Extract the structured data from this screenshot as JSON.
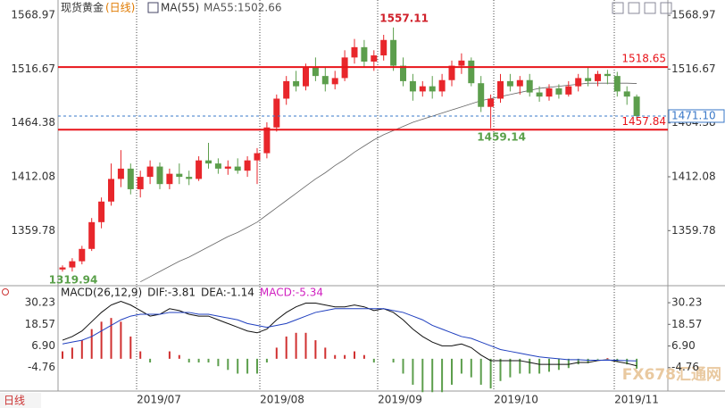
{
  "chart_data": [
    {
      "type": "candlestick",
      "title": "现货黄金",
      "period": "(日线)",
      "indicator": "MA(55)",
      "indicator_value": "MA55:1502.66",
      "open": [
        1322,
        1324,
        1330,
        1342,
        1368,
        1388,
        1410,
        1420,
        1400,
        1412,
        1422,
        1405,
        1415,
        1412,
        1410,
        1428,
        1425,
        1420,
        1422,
        1418,
        1428,
        1435,
        1460,
        1488,
        1505,
        1500,
        1518,
        1510,
        1502,
        1508,
        1528,
        1538,
        1524,
        1530,
        1545,
        1520,
        1505,
        1495,
        1500,
        1495,
        1506,
        1520,
        1525,
        1503,
        1480,
        1488,
        1505,
        1500,
        1506,
        1494,
        1490,
        1498,
        1492,
        1500,
        1508,
        1505,
        1512,
        1510,
        1495,
        1490
      ],
      "high": [
        1326,
        1333,
        1345,
        1372,
        1392,
        1425,
        1438,
        1425,
        1418,
        1428,
        1426,
        1420,
        1425,
        1418,
        1432,
        1445,
        1430,
        1428,
        1430,
        1432,
        1440,
        1465,
        1492,
        1510,
        1515,
        1522,
        1528,
        1518,
        1515,
        1535,
        1546,
        1545,
        1535,
        1550,
        1557.11,
        1528,
        1512,
        1505,
        1510,
        1512,
        1525,
        1532,
        1528,
        1510,
        1492,
        1512,
        1512,
        1510,
        1512,
        1500,
        1502,
        1502,
        1505,
        1512,
        1518,
        1515,
        1516,
        1514,
        1500,
        1492
      ],
      "low": [
        1319.94,
        1320,
        1327,
        1340,
        1362,
        1384,
        1402,
        1395,
        1392,
        1405,
        1400,
        1400,
        1405,
        1404,
        1408,
        1420,
        1415,
        1414,
        1415,
        1412,
        1405,
        1430,
        1456,
        1482,
        1495,
        1496,
        1505,
        1495,
        1497,
        1505,
        1522,
        1518,
        1515,
        1525,
        1515,
        1500,
        1486,
        1490,
        1488,
        1490,
        1500,
        1512,
        1500,
        1475,
        1459.14,
        1484,
        1495,
        1492,
        1490,
        1485,
        1486,
        1488,
        1490,
        1495,
        1500,
        1500,
        1502,
        1490,
        1482,
        1469
      ],
      "close": [
        1324,
        1330,
        1342,
        1368,
        1388,
        1410,
        1420,
        1400,
        1412,
        1422,
        1405,
        1415,
        1412,
        1410,
        1428,
        1425,
        1420,
        1422,
        1418,
        1428,
        1435,
        1460,
        1488,
        1505,
        1500,
        1518,
        1510,
        1502,
        1508,
        1528,
        1538,
        1524,
        1530,
        1545,
        1520,
        1505,
        1495,
        1500,
        1495,
        1506,
        1520,
        1525,
        1503,
        1480,
        1488,
        1505,
        1500,
        1506,
        1494,
        1490,
        1498,
        1492,
        1500,
        1508,
        1505,
        1512,
        1510,
        1495,
        1490,
        1471.1
      ],
      "up_color": "#e8262b",
      "down_color": "#5c9e4c",
      "ma_values": [
        null,
        null,
        null,
        null,
        null,
        null,
        null,
        null,
        1310,
        1315,
        1320,
        1325,
        1330,
        1334,
        1339,
        1344,
        1349,
        1354,
        1358,
        1363,
        1368,
        1375,
        1382,
        1389,
        1396,
        1403,
        1410,
        1416,
        1423,
        1429,
        1436,
        1442,
        1448,
        1453,
        1457,
        1461,
        1465,
        1468,
        1471,
        1474,
        1477,
        1480,
        1483,
        1486,
        1488,
        1490,
        1492,
        1494,
        1496,
        1498,
        1499,
        1500,
        1501,
        1502,
        1503,
        1503,
        1503,
        1503,
        1503,
        1502.66
      ],
      "ma_color": "#666666",
      "levels": [
        {
          "value": 1518.65,
          "color": "#e8141a",
          "style": "solid"
        },
        {
          "value": 1457.84,
          "color": "#e8141a",
          "style": "solid"
        },
        {
          "value": 1471.1,
          "label": "1471.10",
          "color": "#3a78c8",
          "style": "dashed"
        }
      ],
      "annotations": [
        {
          "value": 1557.11,
          "color": "#d0202a"
        },
        {
          "value": 1459.14,
          "color": "#5aa04a"
        },
        {
          "value": 1319.94,
          "color": "#5aa04a"
        }
      ],
      "ylim": [
        1308,
        1579.5
      ],
      "yticks": [
        1568.97,
        1516.67,
        1464.38,
        1412.08,
        1359.78
      ],
      "months": [
        "2019/07",
        "2019/08",
        "2019/09",
        "2019/10",
        "2019/11"
      ],
      "footer": "日线",
      "watermark": "FX678汇通网"
    },
    {
      "type": "macd",
      "header": [
        "MACD(26,12,9)",
        "DIF:-3.81",
        "DEA:-1.14",
        "MACD:-5.34"
      ],
      "header_colors": [
        "#222222",
        "#222222",
        "#222222",
        "#d020c0"
      ],
      "dif": [
        10,
        12,
        15,
        20,
        25,
        29,
        31,
        29,
        26,
        23,
        24,
        27,
        26,
        24,
        23,
        23,
        21,
        19,
        17,
        15,
        14,
        16,
        21,
        25,
        28,
        30,
        30,
        29,
        28,
        28,
        29,
        28,
        26,
        27,
        25,
        21,
        16,
        12,
        9,
        7,
        7,
        8,
        6,
        2,
        -1,
        -1,
        -1,
        -1,
        -2,
        -3,
        -3,
        -3,
        -3,
        -2,
        -2,
        -1,
        -0.5,
        -1.5,
        -2.5,
        -3.81
      ],
      "dea": [
        8,
        9,
        10,
        12,
        15,
        18,
        21,
        23,
        24,
        24,
        24,
        25,
        25,
        25,
        24,
        24,
        23,
        22,
        21,
        19,
        18,
        17,
        18,
        19,
        21,
        23,
        25,
        26,
        27,
        27,
        27,
        27,
        27,
        27,
        26,
        25,
        23,
        21,
        18,
        16,
        14,
        12,
        11,
        9,
        7,
        5,
        4,
        3,
        2,
        1,
        0.5,
        0,
        -0.5,
        -0.5,
        -0.8,
        -0.8,
        -0.7,
        -0.8,
        -1,
        -1.14
      ],
      "hist": [
        4,
        6,
        10,
        16,
        20,
        22,
        20,
        12,
        4,
        -2,
        0,
        4,
        2,
        -2,
        -2,
        -2,
        -4,
        -6,
        -8,
        -8,
        -8,
        -2,
        6,
        12,
        14,
        14,
        10,
        6,
        2,
        2,
        4,
        2,
        -2,
        0,
        -2,
        -8,
        -14,
        -18,
        -18,
        -18,
        -14,
        -8,
        -10,
        -14,
        -16,
        -12,
        -10,
        -8,
        -8,
        -8,
        -7,
        -6,
        -5,
        -3,
        -2.4,
        -0.4,
        0.4,
        -1.4,
        -3,
        -5.34
      ],
      "dif_color": "#111111",
      "dea_color": "#1f3fbf",
      "pos_color": "#d03030",
      "neg_color": "#5c9e4c",
      "ylim": [
        -17.4,
        34.6
      ],
      "yticks": [
        30.23,
        18.57,
        {
          "value": 6.9,
          "label": "6.90"
        },
        -4.76
      ]
    }
  ]
}
